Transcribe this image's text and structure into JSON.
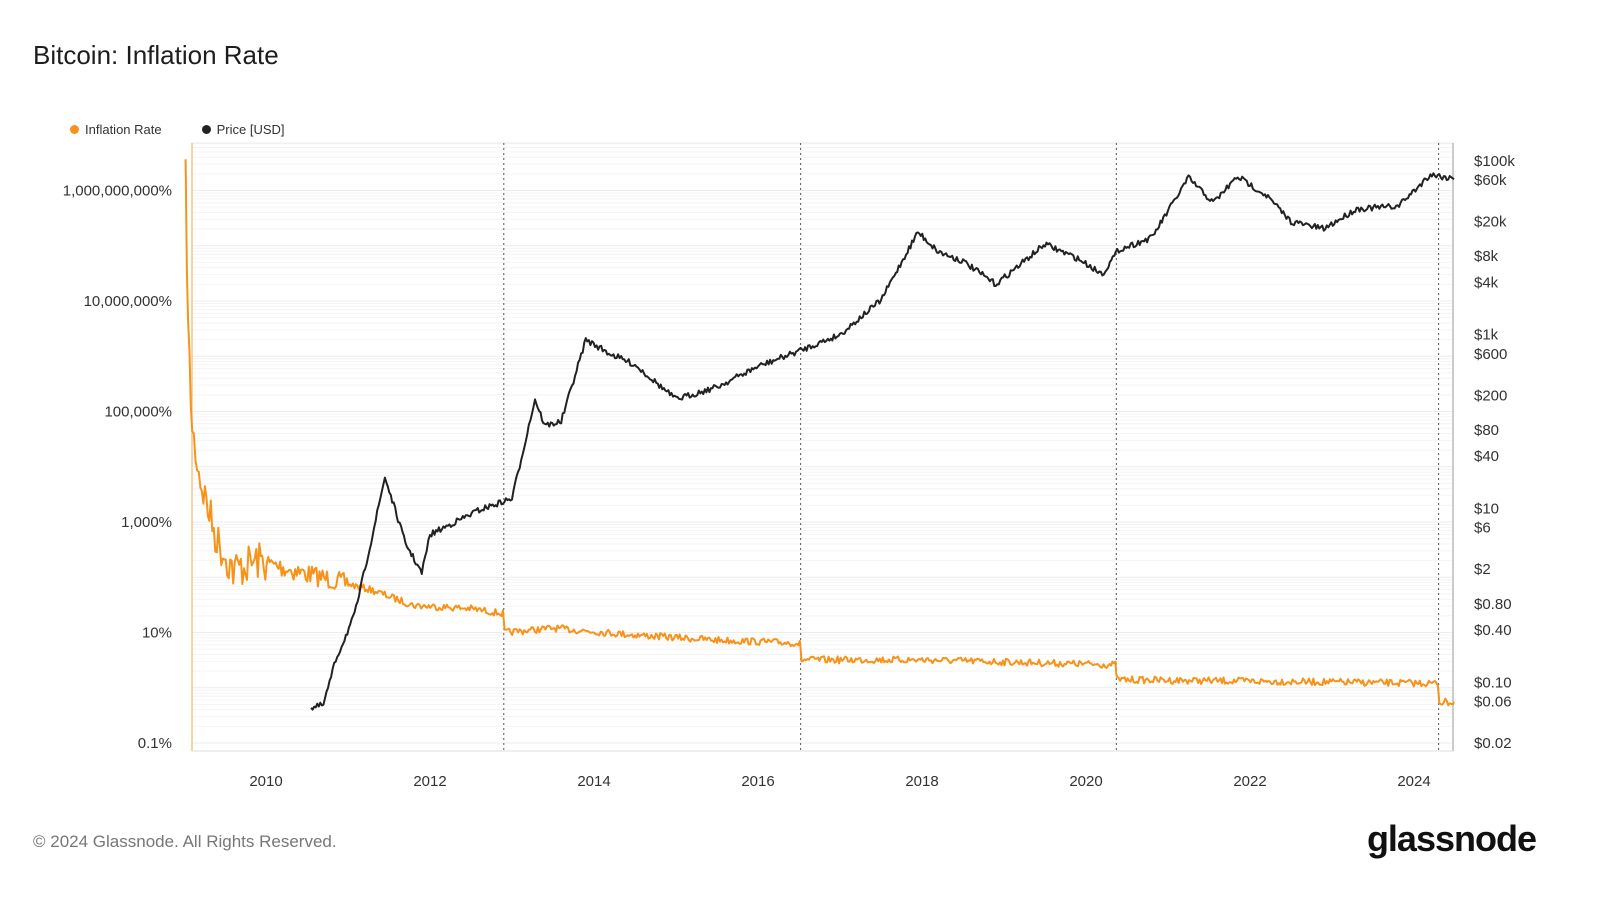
{
  "title": "Bitcoin: Inflation Rate",
  "footer": "© 2024 Glassnode. All Rights Reserved.",
  "logo_text": "glassnode",
  "colors": {
    "inflation": "#f7931a",
    "price": "#222222",
    "halving": "#555555"
  },
  "chart_data": {
    "type": "line",
    "title": "Bitcoin: Inflation Rate",
    "legend": [
      {
        "label": "Inflation Rate",
        "color": "#f7931a"
      },
      {
        "label": "Price [USD]",
        "color": "#222222"
      }
    ],
    "legend_position": "top-left",
    "x_range": [
      2009.0,
      2024.49
    ],
    "x_ticks": [
      2010,
      2012,
      2014,
      2016,
      2018,
      2020,
      2022,
      2024
    ],
    "y_left": {
      "scale": "log",
      "range": [
        0.1,
        1000000000
      ],
      "ticks": [
        {
          "v": 0.1,
          "label": "0.1%"
        },
        {
          "v": 10,
          "label": "10%"
        },
        {
          "v": 1000,
          "label": "1,000%"
        },
        {
          "v": 100000,
          "label": "100,000%"
        },
        {
          "v": 10000000,
          "label": "10,000,000%"
        },
        {
          "v": 1000000000,
          "label": "1,000,000,000%"
        }
      ]
    },
    "y_right": {
      "scale": "log",
      "range": [
        0.02,
        100000
      ],
      "ticks": [
        {
          "v": 100000,
          "label": "$100k"
        },
        {
          "v": 60000,
          "label": "$60k"
        },
        {
          "v": 20000,
          "label": "$20k"
        },
        {
          "v": 8000,
          "label": "$8k"
        },
        {
          "v": 4000,
          "label": "$4k"
        },
        {
          "v": 1000,
          "label": "$1k"
        },
        {
          "v": 600,
          "label": "$600"
        },
        {
          "v": 200,
          "label": "$200"
        },
        {
          "v": 80,
          "label": "$80"
        },
        {
          "v": 40,
          "label": "$40"
        },
        {
          "v": 10,
          "label": "$10"
        },
        {
          "v": 6,
          "label": "$6"
        },
        {
          "v": 2,
          "label": "$2"
        },
        {
          "v": 0.8,
          "label": "$0.80"
        },
        {
          "v": 0.4,
          "label": "$0.40"
        },
        {
          "v": 0.1,
          "label": "$0.10"
        },
        {
          "v": 0.06,
          "label": "$0.06"
        },
        {
          "v": 0.02,
          "label": "$0.02"
        }
      ]
    },
    "halvings": [
      2012.9,
      2016.52,
      2020.37,
      2024.3
    ],
    "series": [
      {
        "name": "Inflation Rate",
        "axis": "left",
        "points": [
          [
            2009.02,
            1600000000
          ],
          [
            2009.05,
            3000000
          ],
          [
            2009.1,
            46000
          ],
          [
            2009.2,
            5700
          ],
          [
            2009.4,
            470
          ],
          [
            2009.6,
            135
          ],
          [
            2009.9,
            200
          ],
          [
            2010.3,
            135
          ],
          [
            2010.8,
            90
          ],
          [
            2011.3,
            58
          ],
          [
            2011.8,
            31
          ],
          [
            2012.5,
            27
          ],
          [
            2012.89,
            22
          ],
          [
            2012.91,
            10
          ],
          [
            2013.5,
            12
          ],
          [
            2014.5,
            9
          ],
          [
            2015.5,
            7.3
          ],
          [
            2016.51,
            6.4
          ],
          [
            2016.53,
            3.2
          ],
          [
            2018,
            3.2
          ],
          [
            2020.36,
            2.6
          ],
          [
            2020.38,
            1.4
          ],
          [
            2024.29,
            1.2
          ],
          [
            2024.31,
            0.55
          ],
          [
            2024.49,
            0.55
          ]
        ]
      },
      {
        "name": "Price [USD]",
        "axis": "right",
        "points": [
          [
            2010.55,
            0.05
          ],
          [
            2010.7,
            0.055
          ],
          [
            2010.85,
            0.18
          ],
          [
            2011.08,
            0.6
          ],
          [
            2011.3,
            5
          ],
          [
            2011.45,
            23
          ],
          [
            2011.7,
            4
          ],
          [
            2011.9,
            1.8
          ],
          [
            2012.0,
            5
          ],
          [
            2012.6,
            9.6
          ],
          [
            2013.0,
            13
          ],
          [
            2013.28,
            180
          ],
          [
            2013.4,
            90
          ],
          [
            2013.6,
            100
          ],
          [
            2013.9,
            875
          ],
          [
            2014.2,
            600
          ],
          [
            2014.5,
            450
          ],
          [
            2015.0,
            180
          ],
          [
            2015.5,
            250
          ],
          [
            2016.0,
            430
          ],
          [
            2016.5,
            650
          ],
          [
            2017.0,
            1000
          ],
          [
            2017.5,
            2500
          ],
          [
            2017.95,
            15200
          ],
          [
            2018.2,
            9000
          ],
          [
            2018.5,
            7000
          ],
          [
            2018.9,
            3800
          ],
          [
            2019.5,
            11000
          ],
          [
            2019.9,
            7500
          ],
          [
            2020.2,
            5000
          ],
          [
            2020.4,
            9500
          ],
          [
            2020.8,
            13000
          ],
          [
            2021.25,
            64000
          ],
          [
            2021.55,
            33000
          ],
          [
            2021.85,
            66000
          ],
          [
            2022.2,
            40000
          ],
          [
            2022.5,
            20000
          ],
          [
            2022.9,
            16500
          ],
          [
            2023.3,
            28000
          ],
          [
            2023.8,
            30000
          ],
          [
            2024.0,
            45000
          ],
          [
            2024.2,
            70000
          ],
          [
            2024.49,
            62000
          ]
        ]
      }
    ]
  }
}
